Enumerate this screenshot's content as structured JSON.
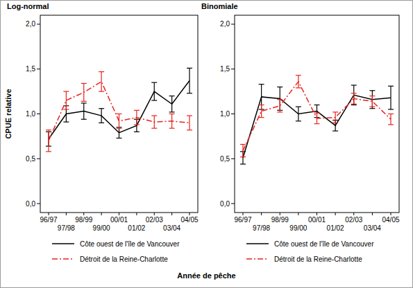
{
  "axis_labels": {
    "x": "Année de pêche",
    "y": "CPUE relative"
  },
  "chart_data": [
    {
      "type": "line",
      "title": "Log-normal",
      "categories": [
        "96/97",
        "97/98",
        "98/99",
        "99/00",
        "00/01",
        "01/02",
        "02/03",
        "03/04",
        "04/05"
      ],
      "ylim": [
        -0.1,
        2.1
      ],
      "yticks": [
        {
          "value": 0,
          "label": "0,0"
        },
        {
          "value": 0.5,
          "label": "0,5"
        },
        {
          "value": 1,
          "label": "1,0"
        },
        {
          "value": 1.5,
          "label": "1,5"
        },
        {
          "value": 2,
          "label": "2,0"
        }
      ],
      "grid": false,
      "legend": "bottom",
      "series": [
        {
          "name": "Côte ouest de l'île de Vancouver",
          "color": "#000000",
          "line_style": "solid",
          "marker": "none",
          "values": [
            0.72,
            1.0,
            1.03,
            0.98,
            0.79,
            0.87,
            1.25,
            1.11,
            1.37
          ],
          "errors": [
            0.08,
            0.09,
            0.09,
            0.08,
            0.06,
            0.07,
            0.1,
            0.09,
            0.14
          ]
        },
        {
          "name": "Détroit de la Reine-Charlotte",
          "color": "#e8221e",
          "line_style": "dashdot",
          "marker": "none",
          "values": [
            0.7,
            1.15,
            1.24,
            1.36,
            0.92,
            0.96,
            0.91,
            0.92,
            0.9
          ],
          "errors": [
            0.12,
            0.1,
            0.1,
            0.11,
            0.08,
            0.08,
            0.07,
            0.08,
            0.08
          ]
        }
      ]
    },
    {
      "type": "line",
      "title": "Binomiale",
      "categories": [
        "96/97",
        "97/98",
        "98/99",
        "99/00",
        "00/01",
        "01/02",
        "02/03",
        "03/04",
        "04/05"
      ],
      "ylim": [
        -0.1,
        2.1
      ],
      "yticks": [
        {
          "value": 0,
          "label": "0,0"
        },
        {
          "value": 0.5,
          "label": "0,5"
        },
        {
          "value": 1,
          "label": "1,0"
        },
        {
          "value": 1.5,
          "label": "1,5"
        },
        {
          "value": 2,
          "label": "2,0"
        }
      ],
      "grid": false,
      "legend": "bottom",
      "series": [
        {
          "name": "Côte ouest de l'île de Vancouver",
          "color": "#000000",
          "line_style": "solid",
          "marker": "none",
          "values": [
            0.51,
            1.19,
            1.17,
            1.0,
            1.03,
            0.87,
            1.21,
            1.16,
            1.18
          ],
          "errors": [
            0.07,
            0.14,
            0.13,
            0.08,
            0.07,
            0.06,
            0.11,
            0.1,
            0.13
          ]
        },
        {
          "name": "Détroit de la Reine-Charlotte",
          "color": "#e8221e",
          "line_style": "dashdot",
          "marker": "none",
          "values": [
            0.59,
            1.03,
            1.09,
            1.36,
            0.95,
            0.96,
            1.17,
            1.14,
            0.94
          ],
          "errors": [
            0.07,
            0.07,
            0.07,
            0.07,
            0.06,
            0.06,
            0.06,
            0.06,
            0.06
          ]
        }
      ]
    }
  ]
}
